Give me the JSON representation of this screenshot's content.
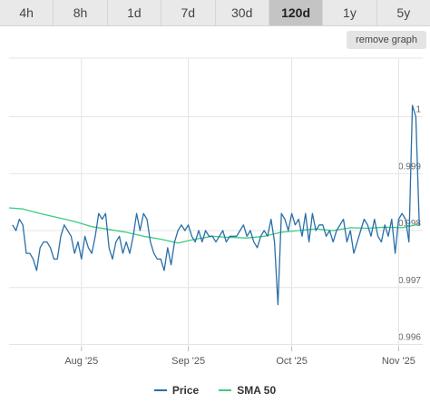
{
  "tabs": [
    {
      "label": "4h",
      "active": false
    },
    {
      "label": "8h",
      "active": false
    },
    {
      "label": "1d",
      "active": false
    },
    {
      "label": "7d",
      "active": false
    },
    {
      "label": "30d",
      "active": false
    },
    {
      "label": "120d",
      "active": true
    },
    {
      "label": "1y",
      "active": false
    },
    {
      "label": "5y",
      "active": false
    }
  ],
  "remove_graph_label": "remove graph",
  "colors": {
    "price": "#2a6fa8",
    "sma": "#3ccb7f",
    "grid": "#e4e4e4",
    "axis_text": "#666666"
  },
  "chart_data": {
    "type": "line",
    "ylim": [
      0.99596,
      1.00103
    ],
    "yticks": [
      {
        "value": 0.996,
        "label": "0.996"
      },
      {
        "value": 0.997,
        "label": "0.997"
      },
      {
        "value": 0.998,
        "label": "0.998"
      },
      {
        "value": 0.999,
        "label": "0.999"
      },
      {
        "value": 1.0,
        "label": "1"
      }
    ],
    "x_range": [
      "2025-07-11",
      "2025-11-08"
    ],
    "xticks": [
      {
        "date": "2025-08-01",
        "label": "Aug '25"
      },
      {
        "date": "2025-09-01",
        "label": "Sep '25"
      },
      {
        "date": "2025-10-01",
        "label": "Oct '25"
      },
      {
        "date": "2025-11-01",
        "label": "Nov '25"
      }
    ],
    "legend_position": "bottom",
    "grid": true,
    "series": [
      {
        "name": "Price",
        "points": [
          [
            "2025-07-12",
            0.9981
          ],
          [
            "2025-07-13",
            0.998
          ],
          [
            "2025-07-14",
            0.9982
          ],
          [
            "2025-07-15",
            0.9981
          ],
          [
            "2025-07-16",
            0.9976
          ],
          [
            "2025-07-17",
            0.9976
          ],
          [
            "2025-07-18",
            0.9975
          ],
          [
            "2025-07-19",
            0.9973
          ],
          [
            "2025-07-20",
            0.9977
          ],
          [
            "2025-07-21",
            0.9978
          ],
          [
            "2025-07-22",
            0.9978
          ],
          [
            "2025-07-23",
            0.9977
          ],
          [
            "2025-07-24",
            0.9975
          ],
          [
            "2025-07-25",
            0.9975
          ],
          [
            "2025-07-26",
            0.9979
          ],
          [
            "2025-07-27",
            0.9981
          ],
          [
            "2025-07-28",
            0.998
          ],
          [
            "2025-07-29",
            0.9979
          ],
          [
            "2025-07-30",
            0.9976
          ],
          [
            "2025-07-31",
            0.9978
          ],
          [
            "2025-08-01",
            0.9975
          ],
          [
            "2025-08-02",
            0.9979
          ],
          [
            "2025-08-03",
            0.9977
          ],
          [
            "2025-08-04",
            0.9976
          ],
          [
            "2025-08-05",
            0.9979
          ],
          [
            "2025-08-06",
            0.9983
          ],
          [
            "2025-08-07",
            0.9982
          ],
          [
            "2025-08-08",
            0.9983
          ],
          [
            "2025-08-09",
            0.9977
          ],
          [
            "2025-08-10",
            0.9975
          ],
          [
            "2025-08-11",
            0.9978
          ],
          [
            "2025-08-12",
            0.9979
          ],
          [
            "2025-08-13",
            0.9976
          ],
          [
            "2025-08-14",
            0.9978
          ],
          [
            "2025-08-15",
            0.9976
          ],
          [
            "2025-08-16",
            0.9979
          ],
          [
            "2025-08-17",
            0.9983
          ],
          [
            "2025-08-18",
            0.998
          ],
          [
            "2025-08-19",
            0.9983
          ],
          [
            "2025-08-20",
            0.9982
          ],
          [
            "2025-08-21",
            0.9978
          ],
          [
            "2025-08-22",
            0.9976
          ],
          [
            "2025-08-23",
            0.9975
          ],
          [
            "2025-08-24",
            0.9975
          ],
          [
            "2025-08-25",
            0.9973
          ],
          [
            "2025-08-26",
            0.9977
          ],
          [
            "2025-08-27",
            0.9974
          ],
          [
            "2025-08-28",
            0.9978
          ],
          [
            "2025-08-29",
            0.998
          ],
          [
            "2025-08-30",
            0.9981
          ],
          [
            "2025-08-31",
            0.998
          ],
          [
            "2025-09-01",
            0.9981
          ],
          [
            "2025-09-02",
            0.9979
          ],
          [
            "2025-09-03",
            0.9978
          ],
          [
            "2025-09-04",
            0.998
          ],
          [
            "2025-09-05",
            0.9978
          ],
          [
            "2025-09-06",
            0.998
          ],
          [
            "2025-09-07",
            0.9979
          ],
          [
            "2025-09-08",
            0.9979
          ],
          [
            "2025-09-09",
            0.9978
          ],
          [
            "2025-09-10",
            0.9979
          ],
          [
            "2025-09-11",
            0.998
          ],
          [
            "2025-09-12",
            0.9978
          ],
          [
            "2025-09-13",
            0.9979
          ],
          [
            "2025-09-14",
            0.9979
          ],
          [
            "2025-09-15",
            0.9979
          ],
          [
            "2025-09-16",
            0.998
          ],
          [
            "2025-09-17",
            0.9981
          ],
          [
            "2025-09-18",
            0.9979
          ],
          [
            "2025-09-19",
            0.998
          ],
          [
            "2025-09-20",
            0.9978
          ],
          [
            "2025-09-21",
            0.9977
          ],
          [
            "2025-09-22",
            0.9979
          ],
          [
            "2025-09-23",
            0.998
          ],
          [
            "2025-09-24",
            0.9979
          ],
          [
            "2025-09-25",
            0.9982
          ],
          [
            "2025-09-26",
            0.9978
          ],
          [
            "2025-09-27",
            0.9967
          ],
          [
            "2025-09-28",
            0.9983
          ],
          [
            "2025-09-29",
            0.9982
          ],
          [
            "2025-09-30",
            0.998
          ],
          [
            "2025-10-01",
            0.9983
          ],
          [
            "2025-10-02",
            0.9981
          ],
          [
            "2025-10-03",
            0.9982
          ],
          [
            "2025-10-04",
            0.9979
          ],
          [
            "2025-10-05",
            0.9983
          ],
          [
            "2025-10-06",
            0.9978
          ],
          [
            "2025-10-07",
            0.9983
          ],
          [
            "2025-10-08",
            0.998
          ],
          [
            "2025-10-09",
            0.9981
          ],
          [
            "2025-10-10",
            0.9981
          ],
          [
            "2025-10-11",
            0.9979
          ],
          [
            "2025-10-12",
            0.998
          ],
          [
            "2025-10-13",
            0.9978
          ],
          [
            "2025-10-14",
            0.998
          ],
          [
            "2025-10-15",
            0.9981
          ],
          [
            "2025-10-16",
            0.9982
          ],
          [
            "2025-10-17",
            0.9978
          ],
          [
            "2025-10-18",
            0.998
          ],
          [
            "2025-10-19",
            0.9976
          ],
          [
            "2025-10-20",
            0.9978
          ],
          [
            "2025-10-21",
            0.998
          ],
          [
            "2025-10-22",
            0.9982
          ],
          [
            "2025-10-23",
            0.9981
          ],
          [
            "2025-10-24",
            0.9979
          ],
          [
            "2025-10-25",
            0.9982
          ],
          [
            "2025-10-26",
            0.9979
          ],
          [
            "2025-10-27",
            0.9978
          ],
          [
            "2025-10-28",
            0.9981
          ],
          [
            "2025-10-29",
            0.9979
          ],
          [
            "2025-10-30",
            0.9982
          ],
          [
            "2025-10-31",
            0.9976
          ],
          [
            "2025-11-01",
            0.9982
          ],
          [
            "2025-11-02",
            0.9983
          ],
          [
            "2025-11-03",
            0.9982
          ],
          [
            "2025-11-04",
            0.9978
          ],
          [
            "2025-11-05",
            1.0002
          ],
          [
            "2025-11-06",
            1.0
          ],
          [
            "2025-11-07",
            0.9981
          ]
        ]
      },
      {
        "name": "SMA 50",
        "points": [
          [
            "2025-07-11",
            0.9984
          ],
          [
            "2025-07-15",
            0.99838
          ],
          [
            "2025-07-20",
            0.9983
          ],
          [
            "2025-07-25",
            0.99823
          ],
          [
            "2025-07-30",
            0.99816
          ],
          [
            "2025-08-04",
            0.99807
          ],
          [
            "2025-08-09",
            0.99802
          ],
          [
            "2025-08-14",
            0.99797
          ],
          [
            "2025-08-19",
            0.9979
          ],
          [
            "2025-08-24",
            0.99785
          ],
          [
            "2025-08-29",
            0.99778
          ],
          [
            "2025-09-03",
            0.99785
          ],
          [
            "2025-09-08",
            0.9979
          ],
          [
            "2025-09-13",
            0.99788
          ],
          [
            "2025-09-18",
            0.99787
          ],
          [
            "2025-09-23",
            0.9979
          ],
          [
            "2025-09-28",
            0.99797
          ],
          [
            "2025-10-03",
            0.998
          ],
          [
            "2025-10-08",
            0.99803
          ],
          [
            "2025-10-13",
            0.998
          ],
          [
            "2025-10-18",
            0.99805
          ],
          [
            "2025-10-23",
            0.99804
          ],
          [
            "2025-10-28",
            0.99806
          ],
          [
            "2025-11-02",
            0.99805
          ],
          [
            "2025-11-06",
            0.9981
          ],
          [
            "2025-11-07",
            0.99812
          ]
        ]
      }
    ]
  },
  "legend": [
    {
      "label": "Price",
      "color": "#2a6fa8"
    },
    {
      "label": "SMA 50",
      "color": "#3ccb7f"
    }
  ]
}
